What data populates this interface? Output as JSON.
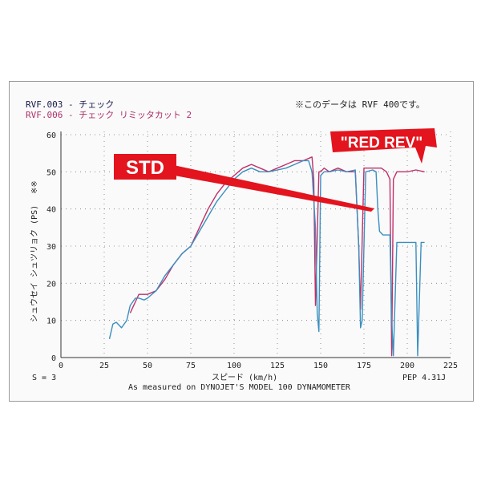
{
  "legend": [
    {
      "text": "RVF.003 - チェック",
      "color": "#1a1a4e"
    },
    {
      "text": "RVF.006 - チェック リミッタカット 2",
      "color": "#b0306a"
    }
  ],
  "note": "※このデータは RVF 400です。",
  "callouts": {
    "std": "STD",
    "red": "\"RED REV\""
  },
  "side_labels": {
    "units_mark": "※※"
  },
  "footer": {
    "left": "S = 3",
    "right": "PEP 4.31J",
    "caption": "As measured on DYNOJET'S MODEL 100 DYNAMOMETER"
  },
  "colors": {
    "std_line": "#3a8fc0",
    "red_line": "#c0306a",
    "callout_red": "#e3141e"
  },
  "chart_data": {
    "type": "line",
    "xlabel": "スピード (km/h)",
    "ylabel": "シュウセイ シュツリョク (PS)",
    "xlim": [
      0,
      225
    ],
    "ylim": [
      0,
      60
    ],
    "x_ticks": [
      0,
      25,
      50,
      75,
      100,
      125,
      150,
      175,
      200,
      225
    ],
    "y_ticks": [
      0,
      10,
      20,
      30,
      40,
      50,
      60
    ],
    "grid": true,
    "series": [
      {
        "name": "RVF.003 - チェック",
        "color": "#3a8fc0",
        "x": [
          28,
          30,
          32,
          35,
          38,
          40,
          43,
          45,
          48,
          50,
          55,
          60,
          65,
          70,
          75,
          80,
          85,
          90,
          95,
          100,
          105,
          110,
          115,
          120,
          125,
          130,
          135,
          140,
          143,
          145,
          147,
          148,
          149,
          150,
          152,
          155,
          160,
          165,
          170,
          172,
          173,
          174,
          176,
          180,
          182,
          183,
          184,
          186,
          190,
          191,
          192,
          194,
          198,
          200,
          203,
          205,
          206,
          208,
          210
        ],
        "y": [
          5,
          9,
          9.5,
          8,
          10,
          14,
          16,
          16,
          15.5,
          16,
          18,
          22,
          25,
          28,
          30,
          34,
          38,
          42,
          45,
          48,
          50,
          51,
          50,
          50,
          50.5,
          51,
          52,
          53,
          53,
          50,
          35,
          12,
          7,
          49,
          50,
          50,
          50.5,
          50,
          50.5,
          30,
          8,
          10,
          50,
          50.5,
          50,
          40,
          34,
          33,
          33,
          10,
          0.5,
          31,
          31,
          31,
          31,
          31,
          0.5,
          31,
          31
        ]
      },
      {
        "name": "RVF.006 - チェック リミッタカット 2",
        "color": "#c0306a",
        "x": [
          40,
          43,
          45,
          50,
          55,
          60,
          65,
          70,
          75,
          80,
          85,
          90,
          95,
          100,
          105,
          110,
          115,
          120,
          125,
          130,
          135,
          140,
          145,
          146,
          147,
          149,
          150,
          152,
          155,
          160,
          165,
          170,
          172,
          173,
          175,
          180,
          185,
          188,
          190,
          191,
          192,
          194,
          200,
          205,
          210
        ],
        "y": [
          12,
          15,
          17,
          17,
          18,
          21,
          25,
          28,
          30,
          35,
          40,
          44,
          47,
          49,
          51,
          52,
          51,
          50,
          51,
          52,
          53,
          53,
          54,
          48,
          14,
          50,
          50,
          51,
          50,
          51,
          50,
          50,
          30,
          13,
          51,
          51,
          51,
          50,
          48,
          0.5,
          48,
          50,
          50,
          50.5,
          50
        ]
      }
    ]
  }
}
